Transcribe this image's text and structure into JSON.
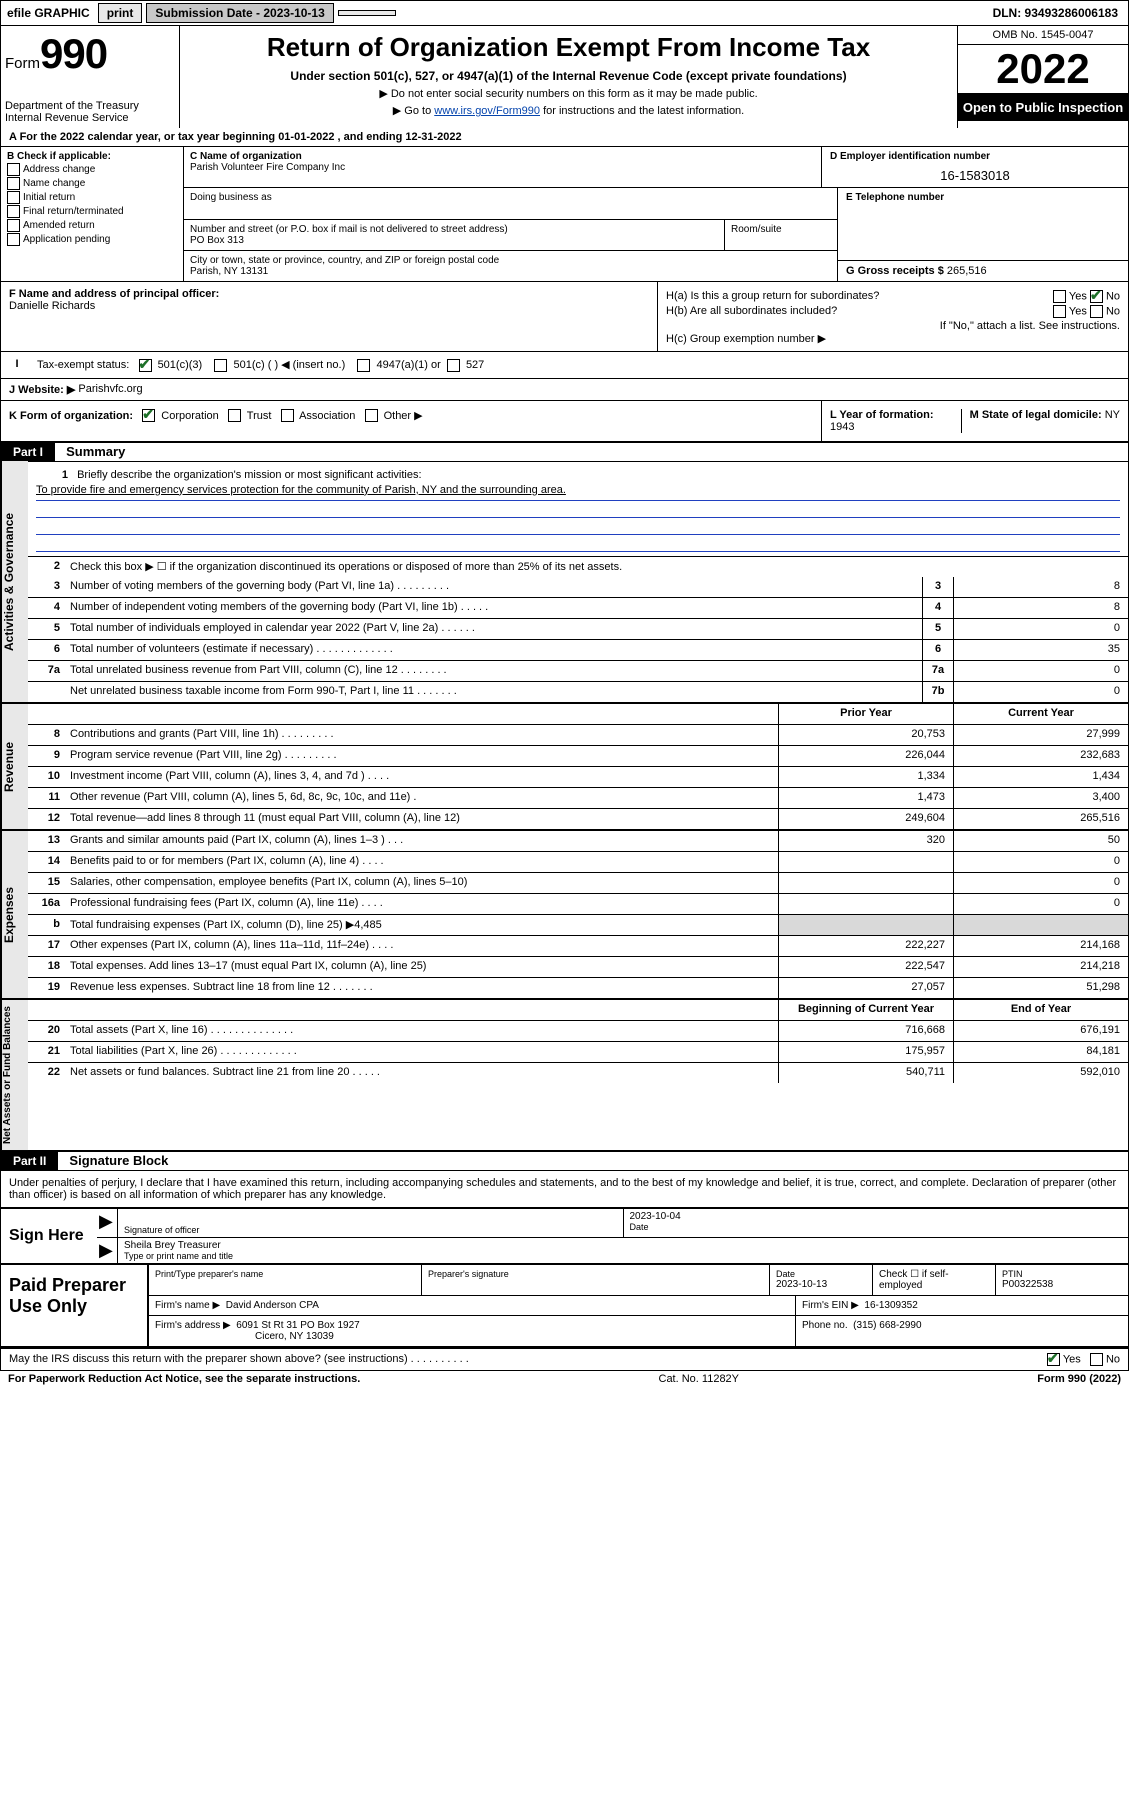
{
  "topbar": {
    "efile": "efile GRAPHIC",
    "print": "print",
    "sub_label": "Submission Date - 2023-10-13",
    "dln": "DLN: 93493286006183"
  },
  "header": {
    "form_prefix": "Form",
    "form_num": "990",
    "dept": "Department of the Treasury",
    "irs": "Internal Revenue Service",
    "title": "Return of Organization Exempt From Income Tax",
    "subtitle": "Under section 501(c), 527, or 4947(a)(1) of the Internal Revenue Code (except private foundations)",
    "sub1": "▶ Do not enter social security numbers on this form as it may be made public.",
    "sub2_pre": "▶ Go to ",
    "sub2_link": "www.irs.gov/Form990",
    "sub2_post": " for instructions and the latest information.",
    "omb": "OMB No. 1545-0047",
    "year": "2022",
    "open": "Open to Public Inspection"
  },
  "period": {
    "line": "A For the 2022 calendar year, or tax year beginning 01-01-2022    , and ending 12-31-2022"
  },
  "boxB": {
    "label": "B Check if applicable:",
    "items": [
      "Address change",
      "Name change",
      "Initial return",
      "Final return/terminated",
      "Amended return",
      "Application pending"
    ]
  },
  "boxC": {
    "label": "C Name of organization",
    "name": "Parish Volunteer Fire Company Inc",
    "dba_label": "Doing business as",
    "addr_label": "Number and street (or P.O. box if mail is not delivered to street address)",
    "room_label": "Room/suite",
    "addr": "PO Box 313",
    "city_label": "City or town, state or province, country, and ZIP or foreign postal code",
    "city": "Parish, NY  13131"
  },
  "boxD": {
    "label": "D Employer identification number",
    "value": "16-1583018"
  },
  "boxE": {
    "label": "E Telephone number",
    "value": ""
  },
  "boxG": {
    "label": "G Gross receipts $",
    "value": "265,516"
  },
  "boxF": {
    "label": "F Name and address of principal officer:",
    "value": "Danielle Richards"
  },
  "boxH": {
    "a": "H(a)  Is this a group return for subordinates?",
    "b": "H(b)  Are all subordinates included?",
    "note": "If \"No,\" attach a list. See instructions.",
    "c": "H(c)  Group exemption number ▶",
    "yes": "Yes",
    "no": "No"
  },
  "boxI": {
    "label": "Tax-exempt status:",
    "opts": [
      "501(c)(3)",
      "501(c) (   ) ◀ (insert no.)",
      "4947(a)(1) or",
      "527"
    ]
  },
  "boxJ": {
    "label": "J    Website: ▶",
    "value": "Parishvfc.org"
  },
  "boxK": {
    "label": "K Form of organization:",
    "opts": [
      "Corporation",
      "Trust",
      "Association",
      "Other ▶"
    ]
  },
  "boxL": {
    "label": "L Year of formation:",
    "value": "1943"
  },
  "boxM": {
    "label": "M State of legal domicile:",
    "value": "NY"
  },
  "part1": {
    "label": "Part I",
    "title": "Summary",
    "sidetabs": [
      "Activities & Governance",
      "Revenue",
      "Expenses",
      "Net Assets or Fund Balances"
    ],
    "mission_label": "Briefly describe the organization's mission or most significant activities:",
    "mission": "To provide fire and emergency services protection for the community of Parish, NY and the surrounding area.",
    "line2": "Check this box ▶ ☐  if the organization discontinued its operations or disposed of more than 25% of its net assets.",
    "rows_single": [
      {
        "n": "3",
        "desc": "Number of voting members of the governing body (Part VI, line 1a)   .    .    .    .    .    .    .    .    .",
        "box": "3",
        "val": "8"
      },
      {
        "n": "4",
        "desc": "Number of independent voting members of the governing body (Part VI, line 1b)   .    .    .    .    .",
        "box": "4",
        "val": "8"
      },
      {
        "n": "5",
        "desc": "Total number of individuals employed in calendar year 2022 (Part V, line 2a)   .    .    .    .    .    .",
        "box": "5",
        "val": "0"
      },
      {
        "n": "6",
        "desc": "Total number of volunteers (estimate if necessary)   .    .    .    .    .    .    .    .    .    .    .    .    .",
        "box": "6",
        "val": "35"
      },
      {
        "n": "7a",
        "desc": "Total unrelated business revenue from Part VIII, column (C), line 12   .    .    .    .    .    .    .    .",
        "box": "7a",
        "val": "0"
      },
      {
        "n": "",
        "desc": "Net unrelated business taxable income from Form 990-T, Part I, line 11   .    .    .    .    .    .    .",
        "box": "7b",
        "val": "0"
      }
    ],
    "col_hdr": {
      "prior": "Prior Year",
      "current": "Current Year",
      "boy": "Beginning of Current Year",
      "eoy": "End of Year"
    },
    "rows_rev": [
      {
        "n": "8",
        "desc": "Contributions and grants (Part VIII, line 1h)   .    .    .    .    .    .    .    .    .",
        "p": "20,753",
        "c": "27,999"
      },
      {
        "n": "9",
        "desc": "Program service revenue (Part VIII, line 2g)   .    .    .    .    .    .    .    .    .",
        "p": "226,044",
        "c": "232,683"
      },
      {
        "n": "10",
        "desc": "Investment income (Part VIII, column (A), lines 3, 4, and 7d )   .    .    .    .",
        "p": "1,334",
        "c": "1,434"
      },
      {
        "n": "11",
        "desc": "Other revenue (Part VIII, column (A), lines 5, 6d, 8c, 9c, 10c, and 11e)   .",
        "p": "1,473",
        "c": "3,400"
      },
      {
        "n": "12",
        "desc": "Total revenue—add lines 8 through 11 (must equal Part VIII, column (A), line 12)",
        "p": "249,604",
        "c": "265,516"
      }
    ],
    "rows_exp": [
      {
        "n": "13",
        "desc": "Grants and similar amounts paid (Part IX, column (A), lines 1–3 )   .    .    .",
        "p": "320",
        "c": "50"
      },
      {
        "n": "14",
        "desc": "Benefits paid to or for members (Part IX, column (A), line 4)   .    .    .    .",
        "p": "",
        "c": "0"
      },
      {
        "n": "15",
        "desc": "Salaries, other compensation, employee benefits (Part IX, column (A), lines 5–10)",
        "p": "",
        "c": "0"
      },
      {
        "n": "16a",
        "desc": "Professional fundraising fees (Part IX, column (A), line 11e)   .    .    .    .",
        "p": "",
        "c": "0"
      },
      {
        "n": "b",
        "desc": "Total fundraising expenses (Part IX, column (D), line 25) ▶4,485",
        "p": "shade",
        "c": "shade"
      },
      {
        "n": "17",
        "desc": "Other expenses (Part IX, column (A), lines 11a–11d, 11f–24e)   .    .    .    .",
        "p": "222,227",
        "c": "214,168"
      },
      {
        "n": "18",
        "desc": "Total expenses. Add lines 13–17 (must equal Part IX, column (A), line 25)",
        "p": "222,547",
        "c": "214,218"
      },
      {
        "n": "19",
        "desc": "Revenue less expenses. Subtract line 18 from line 12   .    .    .    .    .    .    .",
        "p": "27,057",
        "c": "51,298"
      }
    ],
    "rows_net": [
      {
        "n": "20",
        "desc": "Total assets (Part X, line 16)   .    .    .    .    .    .    .    .    .    .    .    .    .    .",
        "p": "716,668",
        "c": "676,191"
      },
      {
        "n": "21",
        "desc": "Total liabilities (Part X, line 26)   .    .    .    .    .    .    .    .    .    .    .    .    .",
        "p": "175,957",
        "c": "84,181"
      },
      {
        "n": "22",
        "desc": "Net assets or fund balances. Subtract line 21 from line 20   .    .    .    .    .",
        "p": "540,711",
        "c": "592,010"
      }
    ]
  },
  "part2": {
    "label": "Part II",
    "title": "Signature Block",
    "decl": "Under penalties of perjury, I declare that I have examined this return, including accompanying schedules and statements, and to the best of my knowledge and belief, it is true, correct, and complete. Declaration of preparer (other than officer) is based on all information of which preparer has any knowledge.",
    "sign_here": "Sign Here",
    "sig_officer": "Signature of officer",
    "sig_date_label": "Date",
    "sig_date": "2023-10-04",
    "officer_name": "Sheila Brey  Treasurer",
    "type_label": "Type or print name and title",
    "paid": "Paid Preparer Use Only",
    "p_name_label": "Print/Type preparer's name",
    "p_sig_label": "Preparer's signature",
    "p_date_label": "Date",
    "p_date": "2023-10-13",
    "p_check": "Check ☐ if self-employed",
    "ptin_label": "PTIN",
    "ptin": "P00322538",
    "firm_name_label": "Firm's name    ▶",
    "firm_name": "David Anderson CPA",
    "firm_ein_label": "Firm's EIN ▶",
    "firm_ein": "16-1309352",
    "firm_addr_label": "Firm's address ▶",
    "firm_addr1": "6091 St Rt 31 PO Box 1927",
    "firm_addr2": "Cicero, NY  13039",
    "phone_label": "Phone no.",
    "phone": "(315) 668-2990",
    "discuss": "May the IRS discuss this return with the preparer shown above? (see instructions)   .    .    .    .    .    .    .    .    .    .",
    "yes": "Yes",
    "no": "No"
  },
  "footer": {
    "pra": "For Paperwork Reduction Act Notice, see the separate instructions.",
    "cat": "Cat. No. 11282Y",
    "form": "Form 990 (2022)"
  },
  "colors": {
    "link": "#0645ad",
    "underline": "#2040c0",
    "check": "#1e7029",
    "shade": "#d9d9d9",
    "sidetab": "#e8e8e8"
  }
}
